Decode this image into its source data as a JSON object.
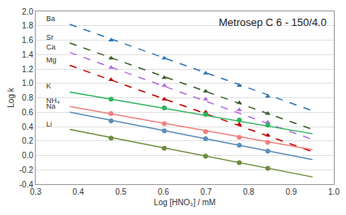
{
  "chart_data": {
    "type": "scatter",
    "title": "Metrosep C 6 - 150/4.0",
    "x_label": "Log [HNO₃] / mM",
    "y_label": "Log k",
    "xlim": [
      0.3,
      1.0
    ],
    "xticks": [
      0.3,
      0.4,
      0.5,
      0.6,
      0.7,
      0.8,
      0.9,
      {
        "value": 1.0,
        "label": "1.0"
      }
    ],
    "ylim": [
      -0.4,
      2.0
    ],
    "yticks": [
      -0.4,
      -0.2,
      {
        "value": 0,
        "label": "0.0"
      },
      0.2,
      0.4,
      0.6,
      0.8,
      {
        "value": 1,
        "label": "1.0"
      },
      1.2,
      1.4,
      1.6,
      1.8,
      {
        "value": 2,
        "label": "2.0"
      }
    ],
    "grid": "y",
    "series": [
      {
        "name": "Ba",
        "color": "#2e75b6",
        "marker": "triangle",
        "line_style": "dashed",
        "x": [
          0.477,
          0.602,
          0.699,
          0.778,
          0.845
        ],
        "values": [
          1.6,
          1.35,
          1.14,
          0.97,
          0.82
        ],
        "fit": {
          "x": [
            0.38,
            0.95
          ],
          "values": [
            1.82,
            0.62
          ]
        }
      },
      {
        "name": "Sr",
        "color": "#3b5e2b",
        "marker": "triangle",
        "line_style": "dashed",
        "x": [
          0.477,
          0.602,
          0.699,
          0.778,
          0.845
        ],
        "values": [
          1.35,
          1.08,
          0.89,
          0.73,
          0.58
        ],
        "fit": {
          "x": [
            0.38,
            0.95
          ],
          "values": [
            1.56,
            0.36
          ]
        }
      },
      {
        "name": "Ca",
        "color": "#b36ae2",
        "marker": "triangle",
        "line_style": "dashed",
        "x": [
          0.477,
          0.602,
          0.699,
          0.778,
          0.845
        ],
        "values": [
          1.22,
          0.97,
          0.78,
          0.63,
          0.46
        ],
        "fit": {
          "x": [
            0.38,
            0.95
          ],
          "values": [
            1.43,
            0.22
          ]
        }
      },
      {
        "name": "Mg",
        "color": "#c00000",
        "marker": "triangle",
        "line_style": "dashed",
        "x": [
          0.477,
          0.602,
          0.699,
          0.778,
          0.845
        ],
        "values": [
          1.05,
          0.78,
          0.6,
          0.43,
          0.28
        ],
        "fit": {
          "x": [
            0.38,
            0.95
          ],
          "values": [
            1.25,
            0.05
          ]
        }
      },
      {
        "name": "K",
        "color": "#2db35c",
        "marker": "circle",
        "line_style": "solid",
        "x": [
          0.477,
          0.602,
          0.699,
          0.778,
          0.845
        ],
        "values": [
          0.78,
          0.66,
          0.57,
          0.49,
          0.42
        ],
        "fit": {
          "x": [
            0.38,
            0.95
          ],
          "values": [
            0.88,
            0.3
          ]
        }
      },
      {
        "name": "NH₄",
        "color": "#f08080",
        "marker": "circle",
        "line_style": "solid",
        "x": [
          0.477,
          0.602,
          0.699,
          0.778,
          0.845
        ],
        "values": [
          0.58,
          0.44,
          0.33,
          0.25,
          0.18
        ],
        "fit": {
          "x": [
            0.38,
            0.95
          ],
          "values": [
            0.68,
            0.08
          ]
        }
      },
      {
        "name": "Na",
        "color": "#5b8db8",
        "marker": "circle",
        "line_style": "solid",
        "x": [
          0.477,
          0.602,
          0.699,
          0.778,
          0.845
        ],
        "values": [
          0.48,
          0.34,
          0.23,
          0.14,
          0.06
        ],
        "fit": {
          "x": [
            0.38,
            0.95
          ],
          "values": [
            0.6,
            -0.06
          ]
        }
      },
      {
        "name": "Li",
        "color": "#6d8b3a",
        "marker": "circle",
        "line_style": "solid",
        "x": [
          0.477,
          0.602,
          0.699,
          0.778,
          0.845
        ],
        "values": [
          0.24,
          0.1,
          -0.01,
          -0.1,
          -0.18
        ],
        "fit": {
          "x": [
            0.38,
            0.95
          ],
          "values": [
            0.36,
            -0.3
          ]
        }
      }
    ]
  }
}
